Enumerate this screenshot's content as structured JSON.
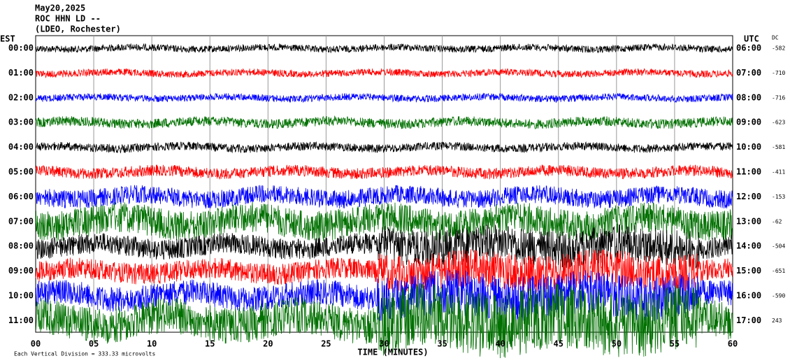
{
  "header": {
    "date": "May20,2025",
    "station": "ROC HHN LD --",
    "network": "(LDEO, Rochester)"
  },
  "left_zone": "EST",
  "right_zone": "UTC",
  "dc_label": "DC",
  "rows": [
    {
      "est": "00:00",
      "utc": "06:00",
      "dc": -582,
      "color": "#000000"
    },
    {
      "est": "01:00",
      "utc": "07:00",
      "dc": -710,
      "color": "#ff0000"
    },
    {
      "est": "02:00",
      "utc": "08:00",
      "dc": -716,
      "color": "#0000ff"
    },
    {
      "est": "03:00",
      "utc": "09:00",
      "dc": -623,
      "color": "#007000"
    },
    {
      "est": "04:00",
      "utc": "10:00",
      "dc": -581,
      "color": "#000000"
    },
    {
      "est": "05:00",
      "utc": "11:00",
      "dc": -411,
      "color": "#ff0000"
    },
    {
      "est": "06:00",
      "utc": "12:00",
      "dc": -153,
      "color": "#0000ff"
    },
    {
      "est": "07:00",
      "utc": "13:00",
      "dc": -62,
      "color": "#007000"
    },
    {
      "est": "08:00",
      "utc": "14:00",
      "dc": -504,
      "color": "#000000"
    },
    {
      "est": "09:00",
      "utc": "15:00",
      "dc": -651,
      "color": "#ff0000"
    },
    {
      "est": "10:00",
      "utc": "16:00",
      "dc": -590,
      "color": "#0000ff"
    },
    {
      "est": "11:00",
      "utc": "17:00",
      "dc": 243,
      "color": "#007000"
    }
  ],
  "x_ticks": [
    "00",
    "05",
    "10",
    "15",
    "20",
    "25",
    "30",
    "35",
    "40",
    "45",
    "50",
    "55",
    "60"
  ],
  "x_label": "TIME (MINUTES)",
  "footer": "Each Vertical Division =  333.33 microvolts"
}
